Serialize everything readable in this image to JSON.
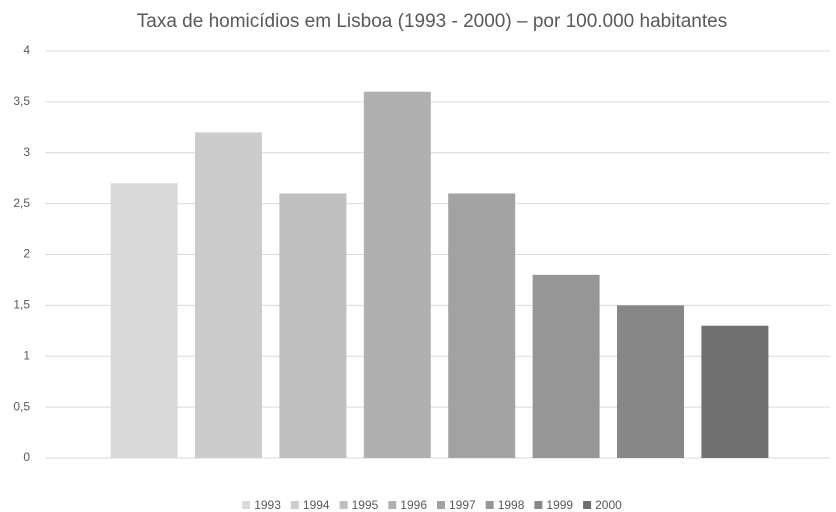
{
  "chart_data": {
    "type": "bar",
    "title": "Taxa de homicídios em Lisboa (1993 - 2000) – por 100.000 habitantes",
    "categories": [
      null
    ],
    "series": [
      {
        "name": "1993",
        "color": "#d9d9d9",
        "values": [
          2.7
        ]
      },
      {
        "name": "1994",
        "color": "#cccccc",
        "values": [
          3.2
        ]
      },
      {
        "name": "1995",
        "color": "#bfbfbf",
        "values": [
          2.6
        ]
      },
      {
        "name": "1996",
        "color": "#b0b0b0",
        "values": [
          3.6
        ]
      },
      {
        "name": "1997",
        "color": "#a3a3a3",
        "values": [
          2.6
        ]
      },
      {
        "name": "1998",
        "color": "#969696",
        "values": [
          1.8
        ]
      },
      {
        "name": "1999",
        "color": "#878787",
        "values": [
          1.5
        ]
      },
      {
        "name": "2000",
        "color": "#707070",
        "values": [
          1.3
        ]
      }
    ],
    "ylim": [
      0,
      4
    ],
    "yticks": [
      0,
      {
        "value": 0.5,
        "label": "0,5"
      },
      1,
      {
        "value": 1.5,
        "label": "1,5"
      },
      2,
      {
        "value": 2.5,
        "label": "2,5"
      },
      3,
      {
        "value": 3.5,
        "label": "3,5"
      },
      4
    ],
    "grid": true,
    "legend": "bottom"
  }
}
